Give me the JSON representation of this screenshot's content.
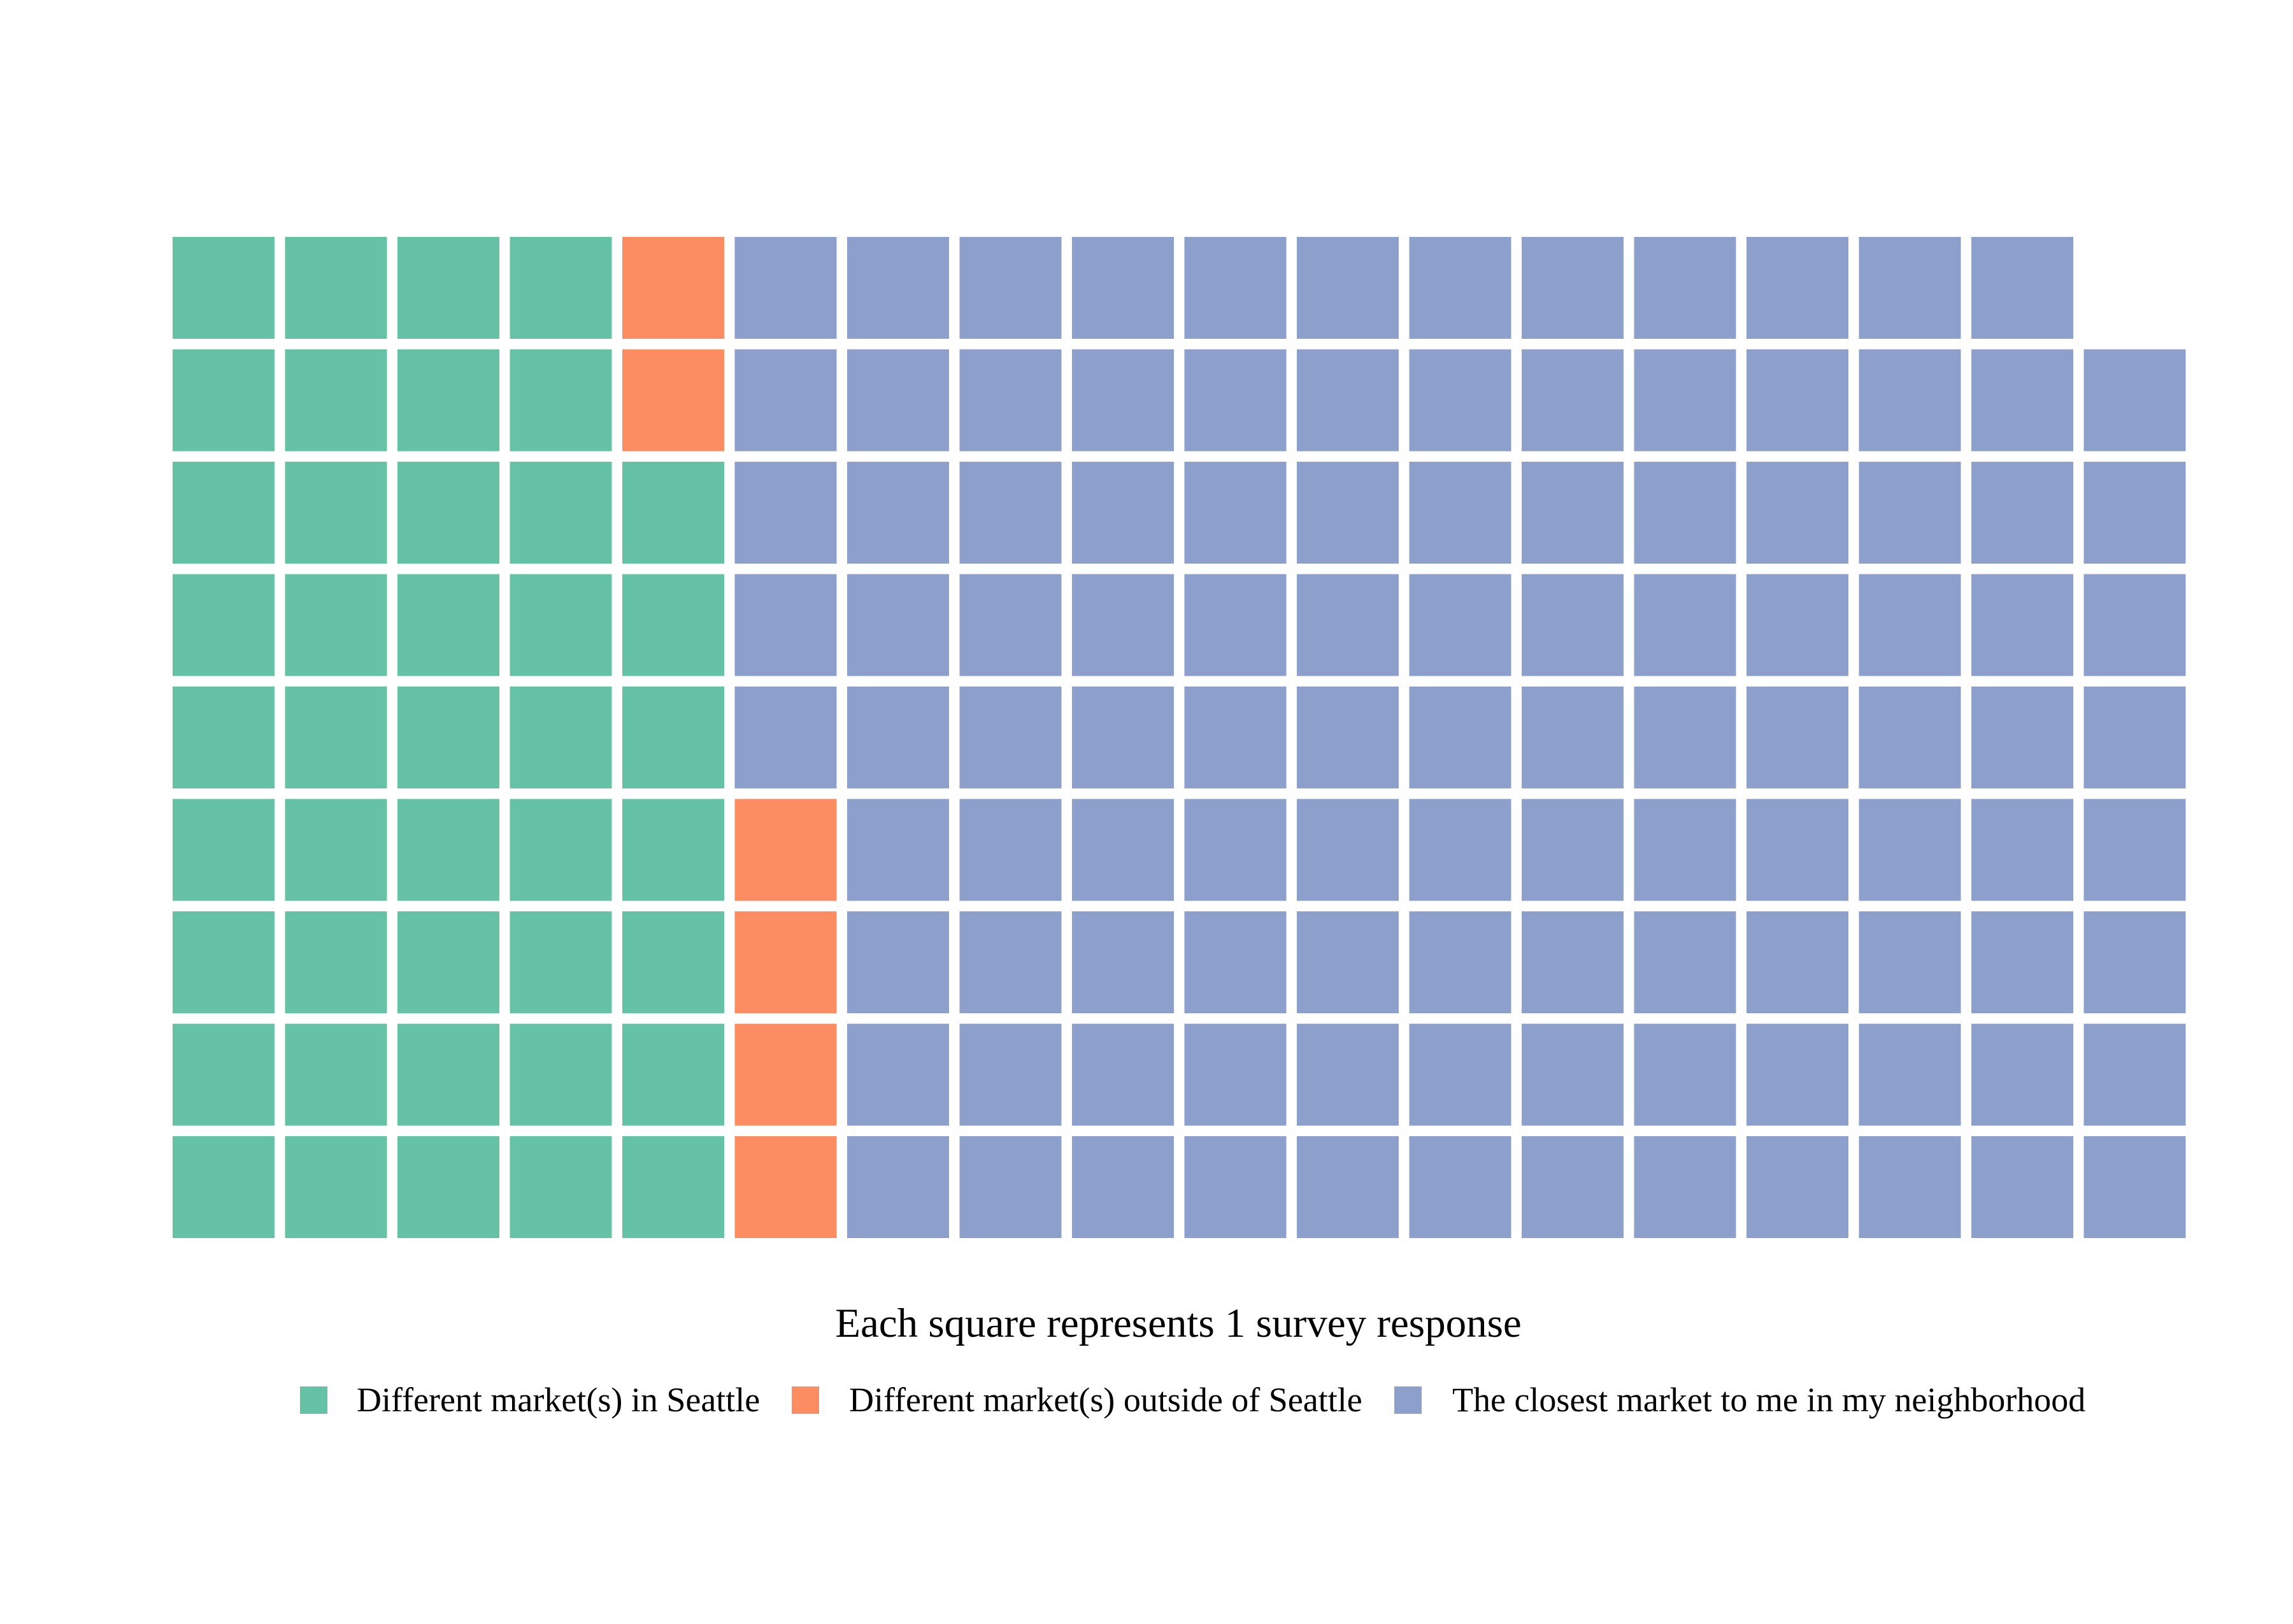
{
  "chart_data": {
    "type": "waffle",
    "rows": 9,
    "columns": 18,
    "fill_order": "column-major, bottom-to-top, left-to-right",
    "unit": 1,
    "xlabel": "Each square represents 1 survey response",
    "legend_position": "bottom",
    "series": [
      {
        "name": "Different market(s) in Seattle",
        "value": 43,
        "color": "#66C2A5"
      },
      {
        "name": "Different market(s) outside of Seattle",
        "value": 6,
        "color": "#FC8D62"
      },
      {
        "name": "The closest market to me in my neighborhood",
        "value": 112,
        "color": "#8DA0CB"
      }
    ]
  }
}
